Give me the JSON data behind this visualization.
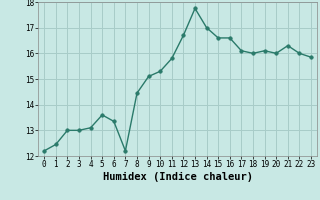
{
  "x": [
    0,
    1,
    2,
    3,
    4,
    5,
    6,
    7,
    8,
    9,
    10,
    11,
    12,
    13,
    14,
    15,
    16,
    17,
    18,
    19,
    20,
    21,
    22,
    23
  ],
  "y": [
    12.2,
    12.45,
    13.0,
    13.0,
    13.1,
    13.6,
    13.35,
    12.2,
    14.45,
    15.1,
    15.3,
    15.8,
    16.7,
    17.75,
    17.0,
    16.6,
    16.6,
    16.1,
    16.0,
    16.1,
    16.0,
    16.3,
    16.0,
    15.85
  ],
  "xlabel": "Humidex (Indice chaleur)",
  "ylim": [
    12,
    18
  ],
  "xlim": [
    -0.5,
    23.5
  ],
  "yticks": [
    12,
    13,
    14,
    15,
    16,
    17,
    18
  ],
  "xticks": [
    0,
    1,
    2,
    3,
    4,
    5,
    6,
    7,
    8,
    9,
    10,
    11,
    12,
    13,
    14,
    15,
    16,
    17,
    18,
    19,
    20,
    21,
    22,
    23
  ],
  "line_color": "#2a7a6a",
  "bg_color": "#c8e8e4",
  "grid_color": "#a8ccc8",
  "marker_size": 2.5,
  "line_width": 1.0,
  "tick_fontsize": 5.5,
  "xlabel_fontsize": 7.5
}
